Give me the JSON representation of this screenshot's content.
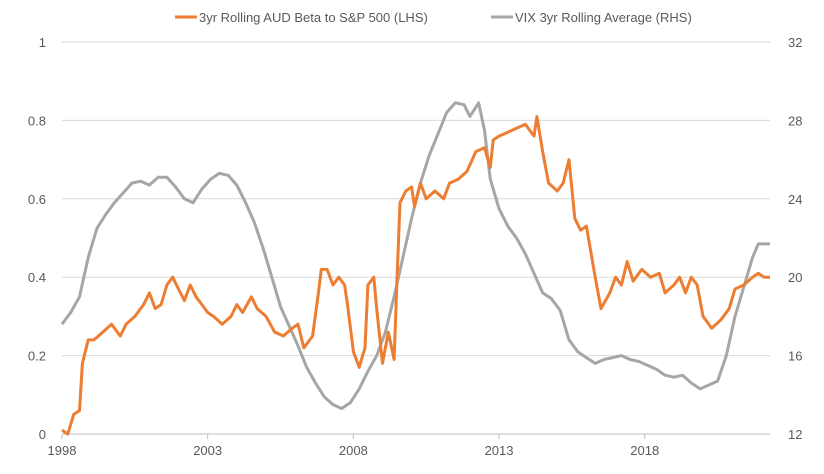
{
  "chart_data": {
    "type": "line",
    "title": "",
    "xlabel": "",
    "y_left": {
      "min": 0,
      "max": 1,
      "ticks": [
        "0",
        "0.2",
        "0.4",
        "0.6",
        "0.8",
        "1"
      ]
    },
    "y_right": {
      "min": 12,
      "max": 32,
      "ticks": [
        "12",
        "16",
        "20",
        "24",
        "28",
        "32"
      ]
    },
    "x_range": [
      1998,
      2022.3
    ],
    "x_ticks": [
      "1998",
      "2003",
      "2008",
      "2013",
      "2018"
    ],
    "grid": "horizontal",
    "legend_position": "top",
    "series": [
      {
        "name": "3yr Rolling AUD Beta to S&P 500 (LHS)",
        "axis": "left",
        "color": "#ED7D31",
        "points": [
          [
            1998.0,
            0.01
          ],
          [
            1998.2,
            0.0
          ],
          [
            1998.4,
            0.05
          ],
          [
            1998.6,
            0.06
          ],
          [
            1998.7,
            0.18
          ],
          [
            1998.9,
            0.24
          ],
          [
            1999.1,
            0.24
          ],
          [
            1999.4,
            0.26
          ],
          [
            1999.7,
            0.28
          ],
          [
            2000.0,
            0.25
          ],
          [
            2000.2,
            0.28
          ],
          [
            2000.5,
            0.3
          ],
          [
            2000.8,
            0.33
          ],
          [
            2001.0,
            0.36
          ],
          [
            2001.2,
            0.32
          ],
          [
            2001.4,
            0.33
          ],
          [
            2001.6,
            0.38
          ],
          [
            2001.8,
            0.4
          ],
          [
            2002.0,
            0.37
          ],
          [
            2002.2,
            0.34
          ],
          [
            2002.4,
            0.38
          ],
          [
            2002.6,
            0.35
          ],
          [
            2002.8,
            0.33
          ],
          [
            2003.0,
            0.31
          ],
          [
            2003.2,
            0.3
          ],
          [
            2003.5,
            0.28
          ],
          [
            2003.8,
            0.3
          ],
          [
            2004.0,
            0.33
          ],
          [
            2004.2,
            0.31
          ],
          [
            2004.5,
            0.35
          ],
          [
            2004.7,
            0.32
          ],
          [
            2005.0,
            0.3
          ],
          [
            2005.3,
            0.26
          ],
          [
            2005.6,
            0.25
          ],
          [
            2005.9,
            0.27
          ],
          [
            2006.1,
            0.28
          ],
          [
            2006.3,
            0.22
          ],
          [
            2006.6,
            0.25
          ],
          [
            2006.8,
            0.36
          ],
          [
            2006.9,
            0.42
          ],
          [
            2007.1,
            0.42
          ],
          [
            2007.3,
            0.38
          ],
          [
            2007.5,
            0.4
          ],
          [
            2007.7,
            0.38
          ],
          [
            2007.8,
            0.33
          ],
          [
            2008.0,
            0.21
          ],
          [
            2008.2,
            0.17
          ],
          [
            2008.4,
            0.22
          ],
          [
            2008.5,
            0.38
          ],
          [
            2008.7,
            0.4
          ],
          [
            2008.8,
            0.32
          ],
          [
            2009.0,
            0.18
          ],
          [
            2009.2,
            0.26
          ],
          [
            2009.4,
            0.19
          ],
          [
            2009.5,
            0.4
          ],
          [
            2009.6,
            0.59
          ],
          [
            2009.8,
            0.62
          ],
          [
            2010.0,
            0.63
          ],
          [
            2010.1,
            0.58
          ],
          [
            2010.3,
            0.64
          ],
          [
            2010.5,
            0.6
          ],
          [
            2010.8,
            0.62
          ],
          [
            2011.1,
            0.6
          ],
          [
            2011.3,
            0.64
          ],
          [
            2011.6,
            0.65
          ],
          [
            2011.9,
            0.67
          ],
          [
            2012.2,
            0.72
          ],
          [
            2012.5,
            0.73
          ],
          [
            2012.7,
            0.68
          ],
          [
            2012.8,
            0.75
          ],
          [
            2013.0,
            0.76
          ],
          [
            2013.3,
            0.77
          ],
          [
            2013.6,
            0.78
          ],
          [
            2013.9,
            0.79
          ],
          [
            2014.2,
            0.76
          ],
          [
            2014.3,
            0.81
          ],
          [
            2014.5,
            0.72
          ],
          [
            2014.7,
            0.64
          ],
          [
            2015.0,
            0.62
          ],
          [
            2015.2,
            0.64
          ],
          [
            2015.4,
            0.7
          ],
          [
            2015.6,
            0.55
          ],
          [
            2015.8,
            0.52
          ],
          [
            2016.0,
            0.53
          ],
          [
            2016.3,
            0.4
          ],
          [
            2016.5,
            0.32
          ],
          [
            2016.8,
            0.36
          ],
          [
            2017.0,
            0.4
          ],
          [
            2017.2,
            0.38
          ],
          [
            2017.4,
            0.44
          ],
          [
            2017.6,
            0.39
          ],
          [
            2017.9,
            0.42
          ],
          [
            2018.2,
            0.4
          ],
          [
            2018.5,
            0.41
          ],
          [
            2018.7,
            0.36
          ],
          [
            2019.0,
            0.38
          ],
          [
            2019.2,
            0.4
          ],
          [
            2019.4,
            0.36
          ],
          [
            2019.6,
            0.4
          ],
          [
            2019.8,
            0.38
          ],
          [
            2020.0,
            0.3
          ],
          [
            2020.3,
            0.27
          ],
          [
            2020.6,
            0.29
          ],
          [
            2020.9,
            0.32
          ],
          [
            2021.1,
            0.37
          ],
          [
            2021.4,
            0.38
          ],
          [
            2021.7,
            0.4
          ],
          [
            2021.9,
            0.41
          ],
          [
            2022.1,
            0.4
          ],
          [
            2022.3,
            0.4
          ]
        ]
      },
      {
        "name": "VIX 3yr Rolling Average (RHS)",
        "axis": "right",
        "color": "#A6A6A6",
        "points": [
          [
            1998.0,
            17.6
          ],
          [
            1998.3,
            18.2
          ],
          [
            1998.6,
            19.0
          ],
          [
            1998.9,
            21.0
          ],
          [
            1999.2,
            22.5
          ],
          [
            1999.5,
            23.2
          ],
          [
            1999.8,
            23.8
          ],
          [
            2000.1,
            24.3
          ],
          [
            2000.4,
            24.8
          ],
          [
            2000.7,
            24.9
          ],
          [
            2001.0,
            24.7
          ],
          [
            2001.3,
            25.1
          ],
          [
            2001.6,
            25.1
          ],
          [
            2001.9,
            24.6
          ],
          [
            2002.2,
            24.0
          ],
          [
            2002.5,
            23.8
          ],
          [
            2002.8,
            24.5
          ],
          [
            2003.1,
            25.0
          ],
          [
            2003.4,
            25.3
          ],
          [
            2003.7,
            25.2
          ],
          [
            2004.0,
            24.7
          ],
          [
            2004.3,
            23.8
          ],
          [
            2004.6,
            22.8
          ],
          [
            2004.9,
            21.5
          ],
          [
            2005.2,
            20.0
          ],
          [
            2005.5,
            18.5
          ],
          [
            2005.8,
            17.5
          ],
          [
            2006.1,
            16.5
          ],
          [
            2006.4,
            15.4
          ],
          [
            2006.7,
            14.6
          ],
          [
            2007.0,
            13.9
          ],
          [
            2007.3,
            13.5
          ],
          [
            2007.6,
            13.3
          ],
          [
            2007.9,
            13.6
          ],
          [
            2008.2,
            14.3
          ],
          [
            2008.5,
            15.2
          ],
          [
            2008.8,
            16.0
          ],
          [
            2009.1,
            17.2
          ],
          [
            2009.4,
            19.0
          ],
          [
            2009.7,
            21.0
          ],
          [
            2010.0,
            23.0
          ],
          [
            2010.3,
            24.8
          ],
          [
            2010.6,
            26.2
          ],
          [
            2010.9,
            27.3
          ],
          [
            2011.2,
            28.4
          ],
          [
            2011.5,
            28.9
          ],
          [
            2011.8,
            28.8
          ],
          [
            2012.0,
            28.2
          ],
          [
            2012.3,
            28.9
          ],
          [
            2012.5,
            27.5
          ],
          [
            2012.7,
            25.0
          ],
          [
            2013.0,
            23.5
          ],
          [
            2013.3,
            22.6
          ],
          [
            2013.6,
            22.0
          ],
          [
            2013.9,
            21.2
          ],
          [
            2014.2,
            20.2
          ],
          [
            2014.5,
            19.2
          ],
          [
            2014.8,
            18.9
          ],
          [
            2015.1,
            18.3
          ],
          [
            2015.4,
            16.8
          ],
          [
            2015.7,
            16.2
          ],
          [
            2016.0,
            15.9
          ],
          [
            2016.3,
            15.6
          ],
          [
            2016.6,
            15.8
          ],
          [
            2016.9,
            15.9
          ],
          [
            2017.2,
            16.0
          ],
          [
            2017.5,
            15.8
          ],
          [
            2017.8,
            15.7
          ],
          [
            2018.1,
            15.5
          ],
          [
            2018.4,
            15.3
          ],
          [
            2018.7,
            15.0
          ],
          [
            2019.0,
            14.9
          ],
          [
            2019.3,
            15.0
          ],
          [
            2019.6,
            14.6
          ],
          [
            2019.9,
            14.3
          ],
          [
            2020.2,
            14.5
          ],
          [
            2020.5,
            14.7
          ],
          [
            2020.8,
            16.0
          ],
          [
            2021.1,
            18.0
          ],
          [
            2021.4,
            19.5
          ],
          [
            2021.7,
            21.0
          ],
          [
            2021.9,
            21.7
          ],
          [
            2022.1,
            21.7
          ],
          [
            2022.3,
            21.7
          ]
        ]
      }
    ]
  }
}
